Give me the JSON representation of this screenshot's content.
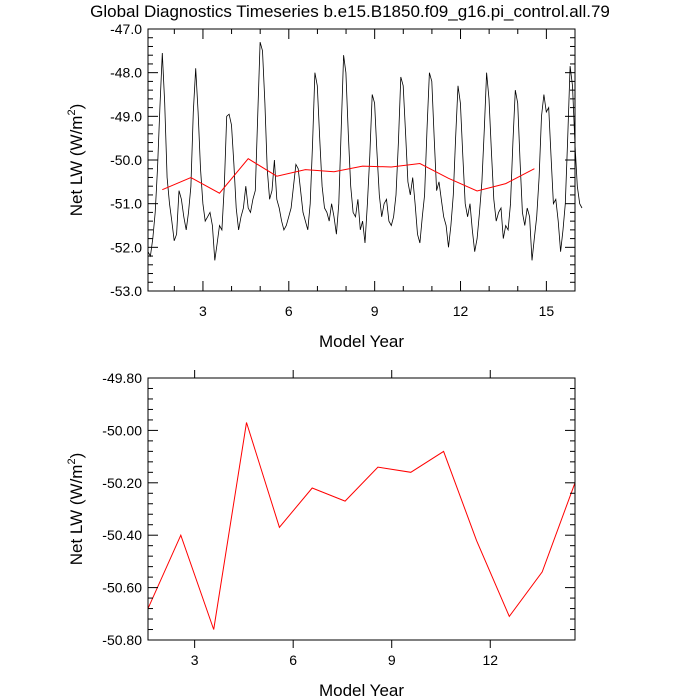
{
  "title": "Global Diagnostics Timeseries b.e15.B1850.f09_g16.pi_control.all.79",
  "colors": {
    "monthly": "#000000",
    "annual": "#ff0000"
  },
  "chart_data": [
    {
      "type": "line",
      "xlabel": "Model Year",
      "ylabel_main": "Net LW (W/m",
      "ylabel_sup": "2",
      "ylabel_tail": ")",
      "xlim": [
        1.08,
        16
      ],
      "ylim": [
        -53.0,
        -47.0
      ],
      "xticks": [
        3,
        6,
        9,
        12,
        15
      ],
      "xtick_labels": [
        "3",
        "6",
        "9",
        "12",
        "15"
      ],
      "yticks": [
        -53,
        -52,
        -51,
        -50,
        -49,
        -48,
        -47
      ],
      "ytick_labels": [
        "-53.0",
        "-52.0",
        "-51.0",
        "-50.0",
        "-49.0",
        "-48.0",
        "-47.0"
      ],
      "grid": false,
      "series": [
        {
          "style": "monthly",
          "x_start": 1.08,
          "x_step": 0.08333,
          "values": [
            -52.1,
            -52.2,
            -51.8,
            -51.2,
            -50.2,
            -48.8,
            -47.55,
            -48.7,
            -50.4,
            -51.0,
            -51.4,
            -51.85,
            -51.7,
            -50.7,
            -50.9,
            -51.3,
            -51.6,
            -51.2,
            -50.6,
            -48.9,
            -47.9,
            -48.9,
            -50.2,
            -51.0,
            -51.4,
            -51.3,
            -51.2,
            -51.5,
            -52.3,
            -51.9,
            -51.5,
            -51.6,
            -50.6,
            -49.0,
            -48.95,
            -49.2,
            -50.1,
            -51.1,
            -51.6,
            -51.3,
            -51.1,
            -50.6,
            -51.1,
            -51.2,
            -50.9,
            -50.7,
            -49.0,
            -47.3,
            -47.5,
            -48.7,
            -50.2,
            -50.9,
            -50.7,
            -50.0,
            -50.9,
            -51.1,
            -51.4,
            -51.6,
            -51.5,
            -51.3,
            -51.1,
            -50.6,
            -50.1,
            -50.2,
            -50.7,
            -51.2,
            -51.4,
            -51.6,
            -51.0,
            -49.6,
            -48.0,
            -48.3,
            -49.5,
            -50.6,
            -51.1,
            -51.2,
            -51.4,
            -51.0,
            -51.3,
            -51.7,
            -51.0,
            -49.3,
            -47.6,
            -48.0,
            -49.4,
            -50.6,
            -51.2,
            -51.3,
            -50.9,
            -51.6,
            -51.4,
            -51.9,
            -51.0,
            -49.9,
            -48.5,
            -48.7,
            -49.8,
            -50.8,
            -51.3,
            -51.0,
            -50.9,
            -51.4,
            -51.5,
            -51.3,
            -50.8,
            -49.6,
            -48.1,
            -48.3,
            -49.4,
            -50.5,
            -50.8,
            -50.4,
            -51.0,
            -51.7,
            -51.9,
            -51.3,
            -50.8,
            -49.3,
            -48.0,
            -48.2,
            -49.5,
            -50.7,
            -50.5,
            -50.9,
            -51.3,
            -51.5,
            -52.0,
            -51.5,
            -50.8,
            -49.5,
            -48.3,
            -48.7,
            -49.9,
            -51.0,
            -51.3,
            -51.0,
            -51.6,
            -52.1,
            -51.8,
            -51.2,
            -50.5,
            -49.3,
            -48.0,
            -48.6,
            -49.8,
            -50.9,
            -51.4,
            -51.2,
            -51.1,
            -51.8,
            -51.5,
            -51.6,
            -51.0,
            -49.6,
            -48.4,
            -48.7,
            -50.0,
            -51.2,
            -51.5,
            -51.1,
            -51.3,
            -52.3,
            -51.8,
            -51.3,
            -50.4,
            -49.0,
            -48.5,
            -48.9,
            -48.8,
            -49.9,
            -51.0,
            -50.9,
            -51.4,
            -52.1,
            -51.6,
            -51.0,
            -49.5,
            -47.85,
            -48.3,
            -49.6,
            -50.6,
            -51.0,
            -51.1
          ]
        },
        {
          "style": "annual",
          "x": [
            1.58,
            2.58,
            3.58,
            4.58,
            5.58,
            6.58,
            7.58,
            8.58,
            9.58,
            10.58,
            11.58,
            12.58,
            13.58,
            14.58
          ],
          "values": [
            -50.68,
            -50.4,
            -50.76,
            -49.97,
            -50.37,
            -50.22,
            -50.27,
            -50.14,
            -50.16,
            -50.08,
            -50.42,
            -50.71,
            -50.54,
            -50.2
          ]
        }
      ]
    },
    {
      "type": "line",
      "xlabel": "Model Year",
      "ylabel_main": "Net LW (W/m",
      "ylabel_sup": "2",
      "ylabel_tail": ")",
      "xlim": [
        1.58,
        14.58
      ],
      "ylim": [
        -50.8,
        -49.8
      ],
      "xticks": [
        3,
        6,
        9,
        12
      ],
      "xtick_labels": [
        "3",
        "6",
        "9",
        "12"
      ],
      "yticks": [
        -50.8,
        -50.6,
        -50.4,
        -50.2,
        -50.0,
        -49.8
      ],
      "ytick_labels": [
        "-50.80",
        "-50.60",
        "-50.40",
        "-50.20",
        "-50.00",
        "-49.80"
      ],
      "grid": false,
      "series": [
        {
          "style": "annual",
          "x": [
            1.58,
            2.58,
            3.58,
            4.58,
            5.58,
            6.58,
            7.58,
            8.58,
            9.58,
            10.58,
            11.58,
            12.58,
            13.58,
            14.58
          ],
          "values": [
            -50.68,
            -50.4,
            -50.76,
            -49.97,
            -50.37,
            -50.22,
            -50.27,
            -50.14,
            -50.16,
            -50.08,
            -50.42,
            -50.71,
            -50.54,
            -50.2
          ]
        }
      ]
    }
  ]
}
